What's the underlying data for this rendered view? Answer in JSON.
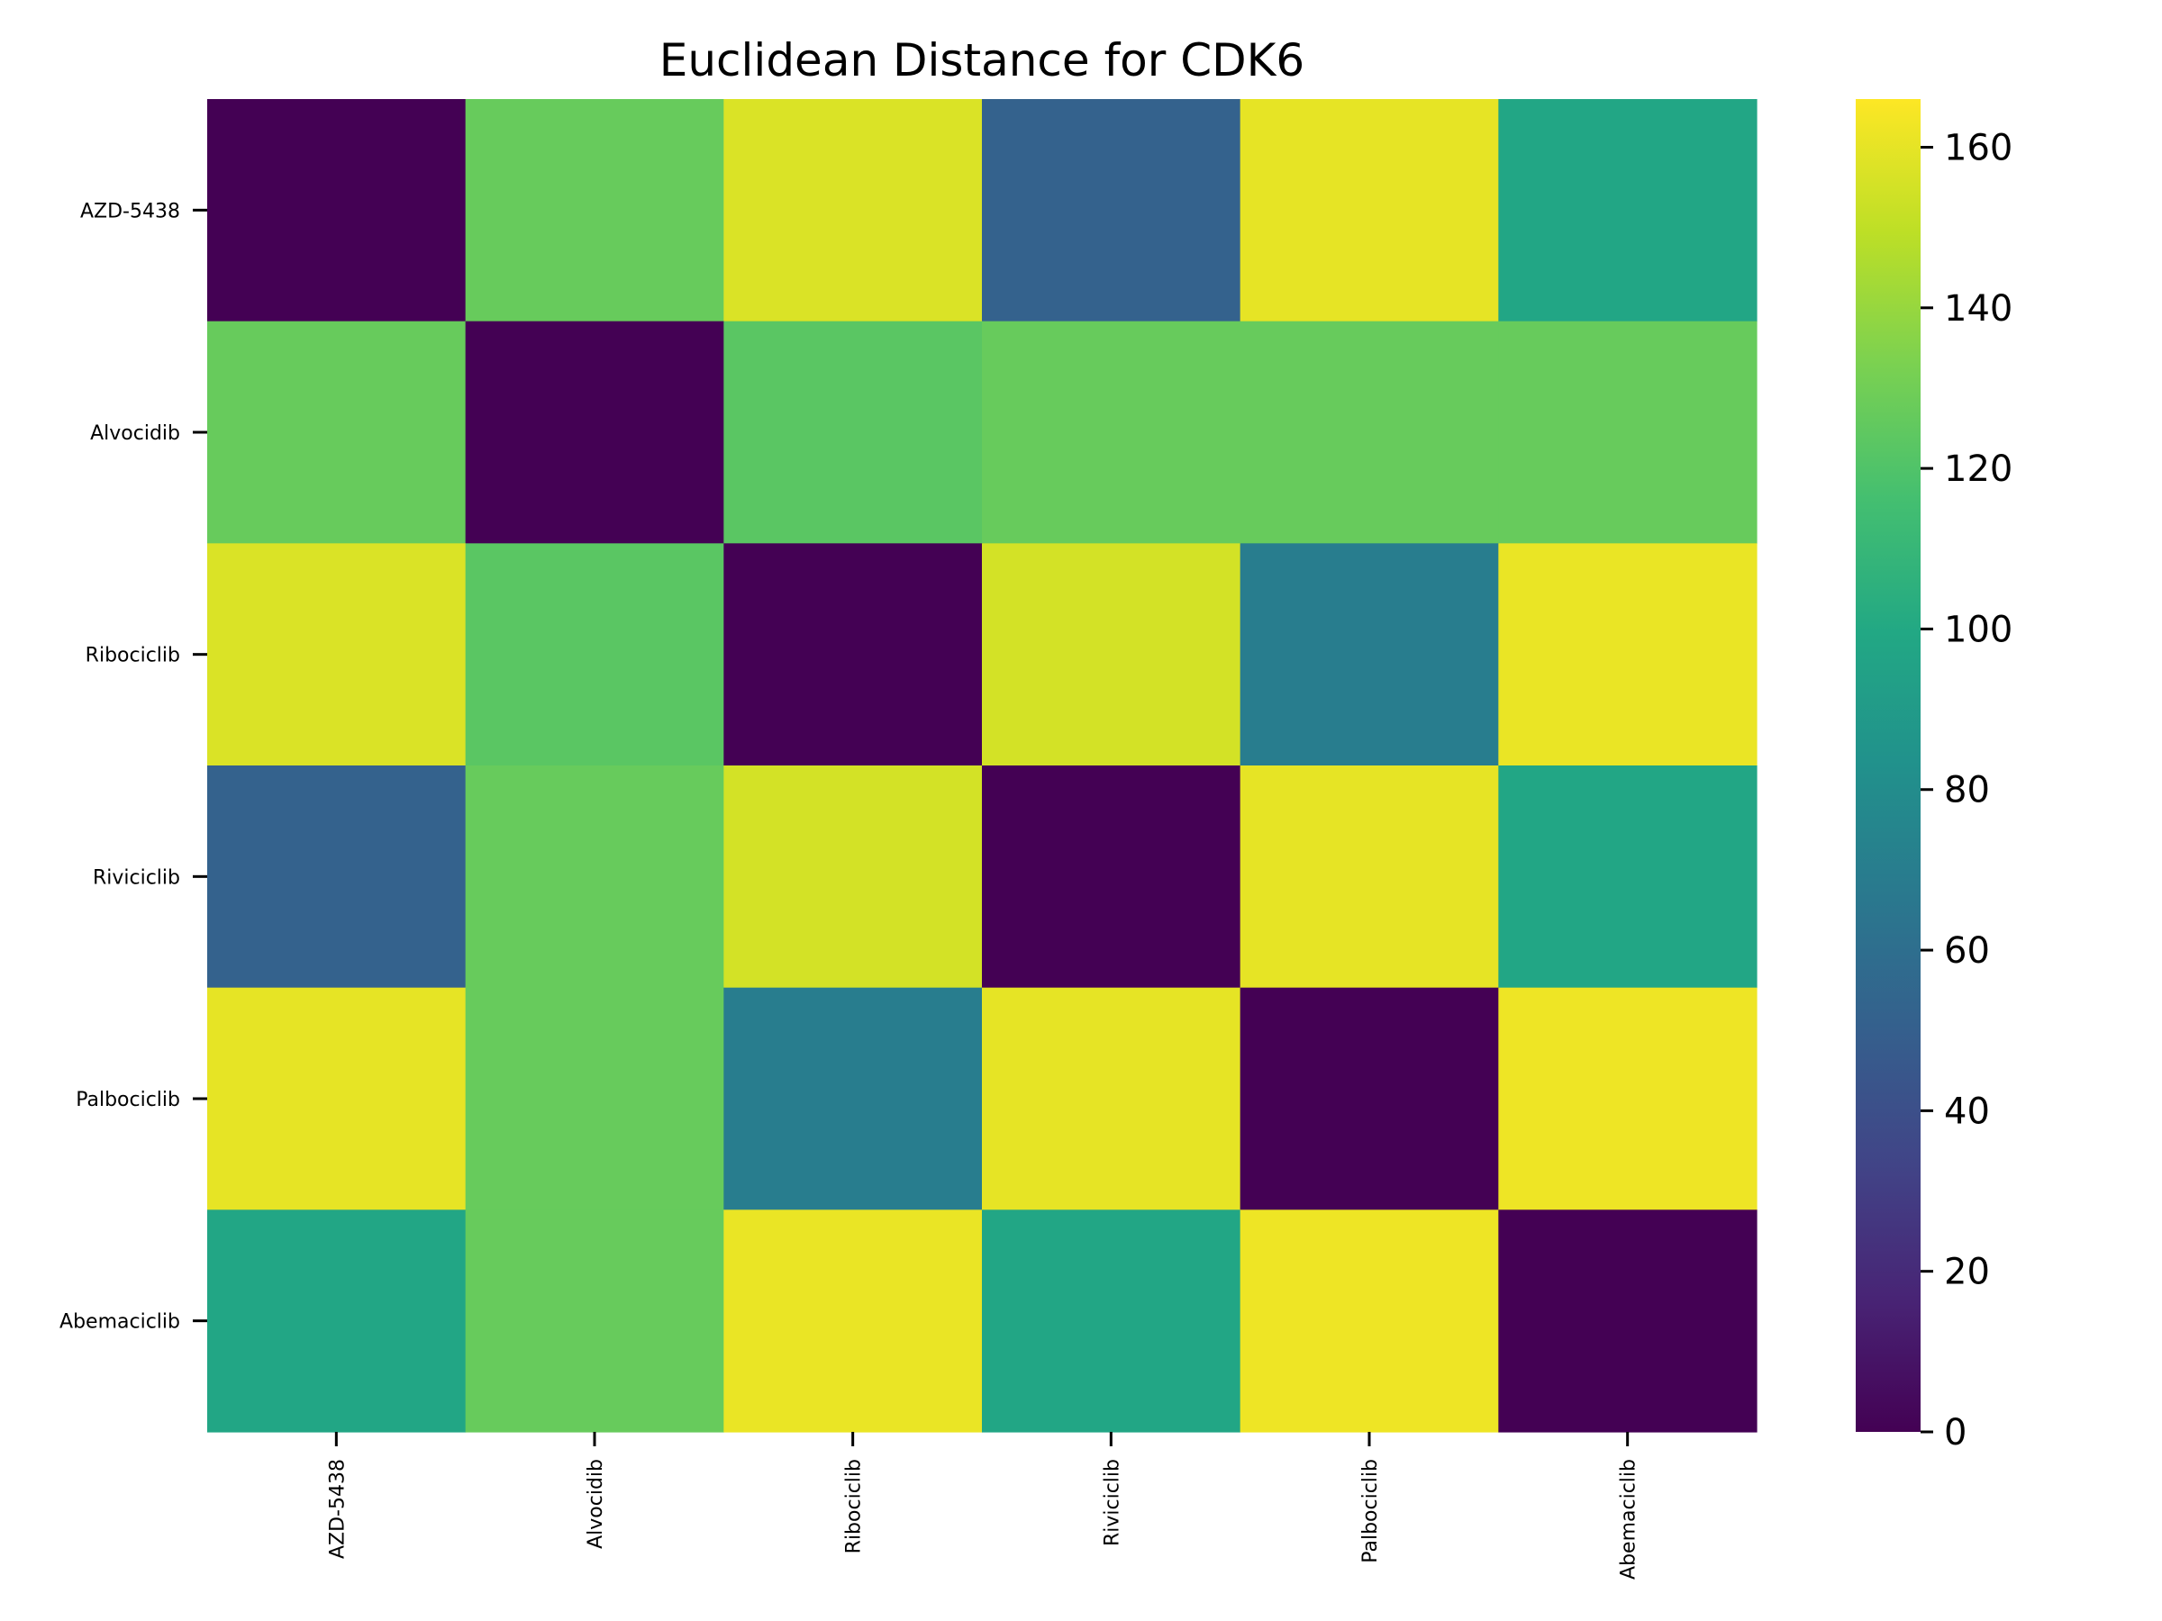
{
  "chart_data": {
    "type": "heatmap",
    "title": "Euclidean Distance for CDK6",
    "xlabel": "",
    "ylabel": "",
    "x_categories": [
      "AZD-5438",
      "Alvocidib",
      "Ribociclib",
      "Riviciclib",
      "Palbociclib",
      "Abemaciclib"
    ],
    "y_categories": [
      "AZD-5438",
      "Alvocidib",
      "Ribociclib",
      "Riviciclib",
      "Palbociclib",
      "Abemaciclib"
    ],
    "values": [
      [
        0,
        127,
        157,
        52,
        160,
        98
      ],
      [
        127,
        0,
        123,
        127,
        127,
        127
      ],
      [
        157,
        123,
        0,
        155,
        70,
        161
      ],
      [
        52,
        127,
        155,
        0,
        160,
        98
      ],
      [
        160,
        127,
        70,
        160,
        0,
        162
      ],
      [
        98,
        127,
        161,
        98,
        162,
        0
      ]
    ],
    "colormap": "viridis",
    "colorbar": {
      "vmin": 0,
      "vmax": 166,
      "ticks": [
        0,
        20,
        40,
        60,
        80,
        100,
        120,
        140,
        160
      ],
      "tick_labels": [
        "0",
        "20",
        "40",
        "60",
        "80",
        "100",
        "120",
        "140",
        "160"
      ]
    },
    "grid": false,
    "legend": "colorbar-right"
  }
}
